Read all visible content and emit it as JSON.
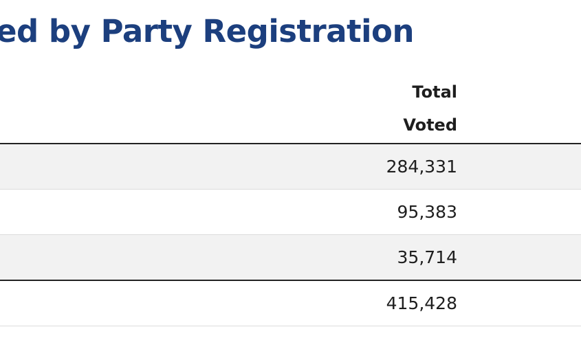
{
  "title": "ed by Party Registration",
  "table": {
    "column_header_line1": "Total",
    "column_header_line2": "Voted",
    "rows": [
      {
        "total_voted": "284,331"
      },
      {
        "total_voted": "95,383"
      },
      {
        "total_voted": "35,714"
      }
    ],
    "total_row": {
      "total_voted": "415,428"
    }
  }
}
